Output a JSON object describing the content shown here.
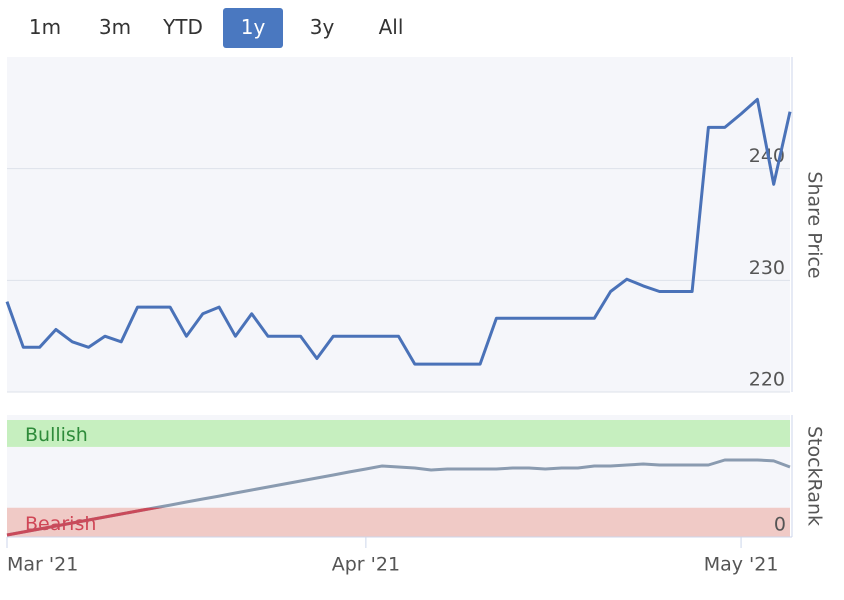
{
  "range_buttons": {
    "labels": [
      "1m",
      "3m",
      "YTD",
      "1y",
      "3y",
      "All"
    ],
    "selected": 3
  },
  "chart_data": [
    {
      "type": "line",
      "y_label": "Share Price",
      "color": "#4a72b8",
      "values": [
        228.1,
        224.0,
        224.0,
        225.6,
        224.5,
        224.0,
        225.0,
        224.5,
        227.6,
        227.6,
        227.6,
        225.0,
        227.0,
        227.6,
        225.0,
        227.0,
        225.0,
        225.0,
        225.0,
        223.0,
        225.0,
        225.0,
        225.0,
        225.0,
        225.0,
        222.5,
        222.5,
        222.5,
        222.5,
        222.5,
        226.6,
        226.6,
        226.6,
        226.6,
        226.6,
        226.6,
        226.6,
        229.0,
        230.1,
        229.5,
        229.0,
        229.0,
        229.0,
        243.7,
        243.7,
        244.9,
        246.2,
        238.6,
        245.1
      ],
      "ylim": [
        220,
        250
      ],
      "yticks": [
        220,
        230,
        240
      ],
      "grid": true
    },
    {
      "type": "line",
      "y_label": "StockRank",
      "color": "#8a9bb0",
      "low_color": "#c94a5a",
      "categories": [
        "Mar '21",
        null,
        null,
        null,
        null,
        null,
        null,
        null,
        null,
        null,
        null,
        null,
        null,
        null,
        null,
        null,
        null,
        null,
        null,
        null,
        null,
        null,
        "Apr '21",
        null,
        null,
        null,
        null,
        null,
        null,
        null,
        null,
        null,
        null,
        null,
        null,
        null,
        null,
        null,
        null,
        null,
        null,
        null,
        null,
        null,
        null,
        "May '21",
        null,
        null,
        null
      ],
      "values": [
        1.7,
        4.3,
        6.8,
        9.4,
        12.0,
        14.5,
        17.1,
        19.7,
        22.2,
        24.8,
        27.3,
        29.9,
        32.5,
        35.0,
        37.6,
        40.2,
        42.7,
        45.3,
        47.9,
        50.4,
        53.0,
        55.6,
        58.1,
        60.7,
        59.8,
        59.0,
        57.3,
        58.1,
        58.1,
        58.1,
        58.1,
        59.0,
        59.0,
        58.1,
        59.0,
        59.0,
        60.7,
        60.7,
        61.5,
        62.4,
        61.5,
        61.5,
        61.5,
        61.5,
        65.8,
        65.8,
        65.8,
        65.0,
        59.8
      ],
      "ylim": [
        0,
        100
      ],
      "yticks": [
        0
      ],
      "bands": [
        {
          "label": "Bullish",
          "range": [
            77,
            100
          ],
          "color": "#c6efbf",
          "text_color": "#2e8b3a"
        },
        {
          "label": "Bearish",
          "range": [
            0,
            25
          ],
          "color": "#f0cac6",
          "text_color": "#d04656"
        }
      ]
    }
  ]
}
